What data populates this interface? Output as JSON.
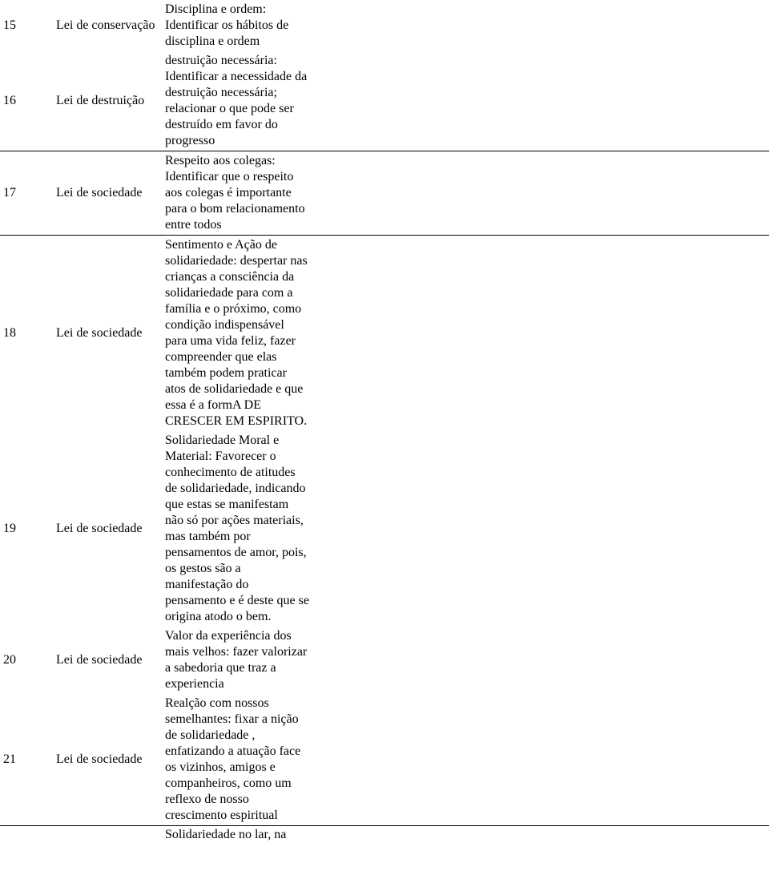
{
  "rows": [
    {
      "num": "15",
      "lei": "Lei de conservação",
      "desc": "Disciplina e ordem: Identificar os hábitos de disciplina e ordem",
      "sep": false
    },
    {
      "num": "16",
      "lei": "Lei de destruição",
      "desc": "destruição necessária: Identificar a necessidade da destruição necessária; relacionar o que pode ser destruído em favor do progresso",
      "sep": true
    },
    {
      "num": "17",
      "lei": "Lei de sociedade",
      "desc": "Respeito aos colegas: Identificar que o respeito aos colegas é importante para o bom relacionamento entre todos",
      "sep": true
    },
    {
      "num": "18",
      "lei": "Lei de sociedade",
      "desc": "Sentimento e Ação de solidariedade: despertar nas crianças a consciência da solidariedade para com a família e o próximo, como condição indispensável para uma vida feliz, fazer compreender que elas também podem praticar atos de solidariedade e que essa é a formA DE CRESCER EM ESPIRITO.",
      "sep": false
    },
    {
      "num": "19",
      "lei": "Lei de sociedade",
      "desc": "Solidariedade Moral e Material: Favorecer o conhecimento de atitudes de solidariedade, indicando que estas se manifestam não só por ações materiais, mas também por pensamentos de amor, pois, os gestos são a manifestação do pensamento e é deste que se origina atodo o bem.",
      "sep": false
    },
    {
      "num": "20",
      "lei": "Lei de sociedade",
      "desc": "Valor da experiência dos mais velhos: fazer valorizar a sabedoria que traz a experiencia",
      "sep": false
    },
    {
      "num": "21",
      "lei": "Lei de sociedade",
      "desc": "Realção com nossos semelhantes: fixar a nição de solidariedade , enfatizando a atuação face os vizinhos, amigos e companheiros, como um reflexo de nosso crescimento espiritual",
      "sep": true
    }
  ],
  "trailing_fragment": "Solidariedade no lar, na"
}
